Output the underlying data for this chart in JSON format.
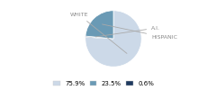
{
  "labels": [
    "WHITE",
    "A.I.",
    "HISPANIC"
  ],
  "values": [
    75.9,
    0.6,
    23.5
  ],
  "colors": [
    "#ccd9e8",
    "#1e3a5f",
    "#6a9ab5"
  ],
  "legend_labels": [
    "75.9%",
    "23.5%",
    "0.6%"
  ],
  "legend_colors": [
    "#ccd9e8",
    "#6a9ab5",
    "#1e3a5f"
  ],
  "startangle": 90,
  "figsize": [
    2.4,
    1.0
  ],
  "dpi": 100
}
